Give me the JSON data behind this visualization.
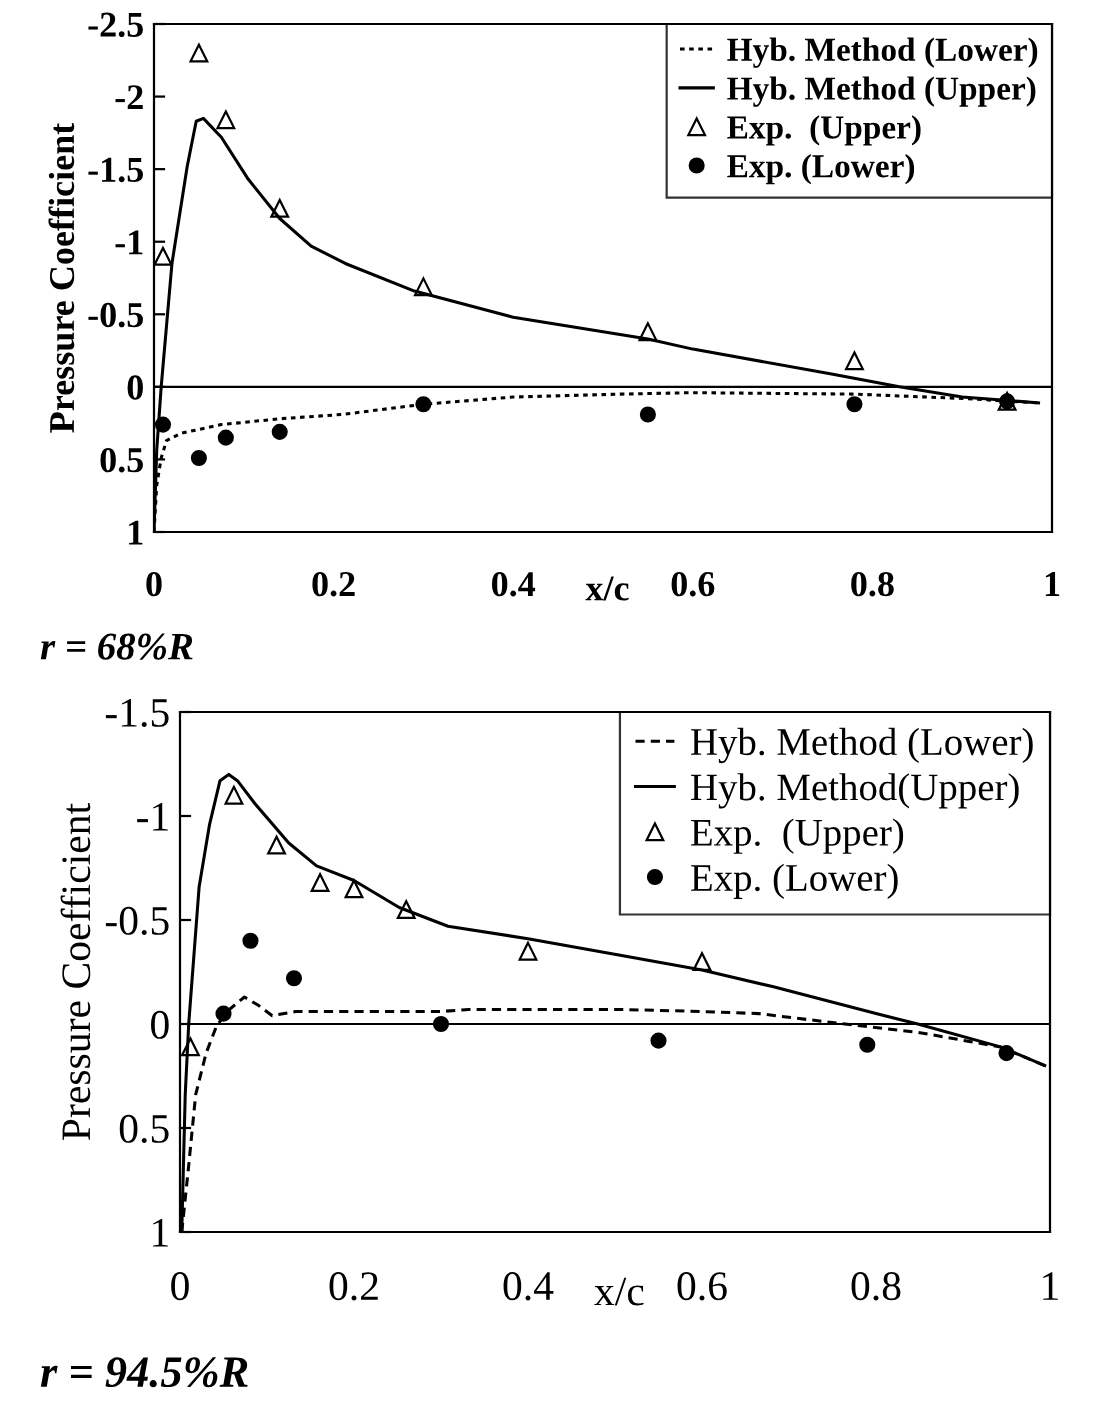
{
  "chart_data": [
    {
      "type": "line",
      "xlabel": "x/c",
      "ylabel": "Pressure Coefficient",
      "xlim": [
        0,
        1
      ],
      "ylim": [
        1,
        -2.5
      ],
      "xticks": [
        0,
        0.2,
        0.4,
        0.6,
        0.8,
        1
      ],
      "yticks": [
        -2.5,
        -2,
        -1.5,
        -1,
        -0.5,
        0,
        0.5,
        1
      ],
      "grid": false,
      "legend": "top right",
      "ref_lines": [
        {
          "axis": "y",
          "value": 0,
          "color": "#000000"
        }
      ],
      "annotations": [
        "r = 68%R"
      ],
      "series": [
        {
          "name": "Hyb. Method (Lower)",
          "color": "#000000",
          "line_style": "dotted",
          "marker": "none",
          "x": [
            0,
            0.003,
            0.008,
            0.014,
            0.03,
            0.075,
            0.14,
            0.21,
            0.3,
            0.4,
            0.52,
            0.6,
            0.78,
            0.9,
            0.985
          ],
          "values": [
            1,
            0.68,
            0.49,
            0.37,
            0.32,
            0.26,
            0.22,
            0.19,
            0.12,
            0.07,
            0.05,
            0.04,
            0.05,
            0.08,
            0.11
          ]
        },
        {
          "name": "Hyb. Method (Upper)",
          "color": "#000000",
          "line_style": "solid",
          "marker": "none",
          "x": [
            0,
            0.003,
            0.008,
            0.02,
            0.037,
            0.047,
            0.055,
            0.075,
            0.105,
            0.14,
            0.175,
            0.213,
            0.29,
            0.4,
            0.55,
            0.6,
            0.753,
            0.83,
            0.9,
            0.985
          ],
          "values": [
            1,
            0.44,
            0,
            -0.85,
            -1.52,
            -1.83,
            -1.85,
            -1.72,
            -1.43,
            -1.16,
            -0.97,
            -0.85,
            -0.66,
            -0.48,
            -0.33,
            -0.26,
            -0.09,
            0,
            0.07,
            0.11
          ]
        },
        {
          "name": "Exp.  (Upper)",
          "type": "scatter",
          "color": "#000000",
          "marker": "triangle",
          "x": [
            0.01,
            0.05,
            0.08,
            0.14,
            0.3,
            0.55,
            0.78,
            0.95
          ],
          "values": [
            -0.9,
            -2.3,
            -1.84,
            -1.23,
            -0.69,
            -0.38,
            -0.18,
            0.1
          ]
        },
        {
          "name": "Exp. (Lower)",
          "type": "scatter",
          "color": "#000000",
          "marker": "circle",
          "x": [
            0.01,
            0.05,
            0.08,
            0.14,
            0.3,
            0.55,
            0.78,
            0.95
          ],
          "values": [
            0.26,
            0.49,
            0.35,
            0.31,
            0.12,
            0.19,
            0.12,
            0.1
          ]
        }
      ]
    },
    {
      "type": "line",
      "xlabel": "x/c",
      "ylabel": "Pressure Coefficient",
      "xlim": [
        0,
        1
      ],
      "ylim": [
        1,
        -1.5
      ],
      "xticks": [
        0,
        0.2,
        0.4,
        0.6,
        0.8,
        1
      ],
      "yticks": [
        -1.5,
        -1,
        -0.5,
        0,
        0.5,
        1
      ],
      "grid": false,
      "legend": "top right",
      "ref_lines": [
        {
          "axis": "y",
          "value": 0,
          "color": "#000000"
        }
      ],
      "annotations": [
        "r = 94.5%R"
      ],
      "series": [
        {
          "name": "Hyb. Method (Lower)",
          "color": "#000000",
          "line_style": "dashed",
          "marker": "none",
          "x": [
            0.002,
            0.01,
            0.018,
            0.03,
            0.042,
            0.054,
            0.074,
            0.09,
            0.106,
            0.133,
            0.205,
            0.3,
            0.332,
            0.506,
            0.6,
            0.665,
            0.744,
            0.848,
            0.943,
            0.994
          ],
          "values": [
            1,
            0.68,
            0.34,
            0.14,
            0.01,
            -0.06,
            -0.13,
            -0.09,
            -0.04,
            -0.06,
            -0.06,
            -0.06,
            -0.07,
            -0.07,
            -0.06,
            -0.05,
            -0.01,
            0.04,
            0.11,
            0.2
          ]
        },
        {
          "name": "Hyb. Method(Upper)",
          "color": "#000000",
          "line_style": "solid",
          "marker": "none",
          "x": [
            0.002,
            0.006,
            0.01,
            0.022,
            0.034,
            0.046,
            0.056,
            0.066,
            0.086,
            0.125,
            0.157,
            0.2,
            0.252,
            0.308,
            0.4,
            0.506,
            0.6,
            0.681,
            0.8,
            0.848,
            0.943,
            0.994
          ],
          "values": [
            1,
            0.34,
            0,
            -0.66,
            -0.96,
            -1.17,
            -1.2,
            -1.17,
            -1.06,
            -0.87,
            -0.76,
            -0.69,
            -0.56,
            -0.47,
            -0.41,
            -0.33,
            -0.26,
            -0.18,
            -0.05,
            0,
            0.11,
            0.2
          ]
        },
        {
          "name": "Exp.  (Upper)",
          "type": "scatter",
          "color": "#000000",
          "marker": "triangle",
          "x": [
            0.012,
            0.062,
            0.111,
            0.161,
            0.2,
            0.26,
            0.4,
            0.6
          ],
          "values": [
            0.11,
            -1.1,
            -0.86,
            -0.68,
            -0.65,
            -0.55,
            -0.35,
            -0.3
          ]
        },
        {
          "name": "Exp. (Lower)",
          "type": "scatter",
          "color": "#000000",
          "marker": "circle",
          "x": [
            0.05,
            0.081,
            0.131,
            0.3,
            0.55,
            0.79,
            0.95
          ],
          "values": [
            -0.05,
            -0.4,
            -0.22,
            0,
            0.08,
            0.1,
            0.14
          ]
        }
      ]
    }
  ]
}
